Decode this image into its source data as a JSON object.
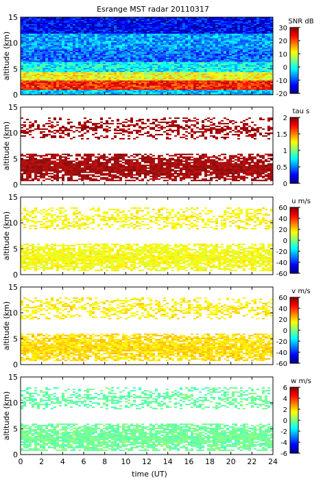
{
  "chart_data": {
    "type": "heatmap",
    "title": "Esrange MST radar 20110317",
    "xlabel": "time (UT)",
    "xlim": [
      0,
      24
    ],
    "xticks": [
      "0",
      "2",
      "4",
      "6",
      "8",
      "10",
      "12",
      "14",
      "16",
      "18",
      "20",
      "22",
      "24"
    ],
    "panels": [
      {
        "id": "snr",
        "ylabel": "altitude (km)",
        "ylim": [
          0,
          15
        ],
        "yticks": [
          "0",
          "5",
          "10",
          "15"
        ],
        "colorbar_label": "SNR dB",
        "colorbar_range": [
          -20,
          30
        ],
        "colorbar_ticks": [
          "30",
          "20",
          "10",
          "0",
          "-10",
          "-20"
        ],
        "colormap": "jet",
        "layers": [
          {
            "alt_min": 0.0,
            "alt_max": 1.0,
            "level": 0.32
          },
          {
            "alt_min": 1.0,
            "alt_max": 2.8,
            "level": 0.85
          },
          {
            "alt_min": 2.8,
            "alt_max": 4.6,
            "level": 0.62
          },
          {
            "alt_min": 4.6,
            "alt_max": 6.5,
            "level": 0.38
          },
          {
            "alt_min": 6.5,
            "alt_max": 9.0,
            "level": 0.22
          },
          {
            "alt_min": 9.0,
            "alt_max": 12.0,
            "level": 0.28
          },
          {
            "alt_min": 12.0,
            "alt_max": 15.0,
            "level": 0.12
          }
        ]
      },
      {
        "id": "tau",
        "ylabel": "altitude (km)",
        "ylim": [
          0,
          15
        ],
        "yticks": [
          "0",
          "5",
          "10",
          "15"
        ],
        "colorbar_label": "tau s",
        "colorbar_range": [
          0,
          2
        ],
        "colorbar_ticks": [
          "2",
          "1.5",
          "1",
          "0.5",
          "0"
        ],
        "colormap": "jet",
        "layers": [
          {
            "alt_min": 0.8,
            "alt_max": 6.0,
            "level": 0.97
          },
          {
            "alt_min": 9.0,
            "alt_max": 13.0,
            "level": 0.97
          }
        ]
      },
      {
        "id": "u",
        "ylabel": "altitude (km)",
        "ylim": [
          0,
          15
        ],
        "yticks": [
          "0",
          "5",
          "10",
          "15"
        ],
        "colorbar_label": "u m/s",
        "colorbar_range": [
          -60,
          60
        ],
        "colorbar_ticks": [
          "60",
          "40",
          "20",
          "0",
          "-20",
          "-40",
          "-60"
        ],
        "colormap": "jet",
        "layers": [
          {
            "alt_min": 0.8,
            "alt_max": 6.0,
            "level": 0.62
          },
          {
            "alt_min": 9.0,
            "alt_max": 13.0,
            "level": 0.63
          }
        ]
      },
      {
        "id": "v",
        "ylabel": "altitude (km)",
        "ylim": [
          0,
          15
        ],
        "yticks": [
          "0",
          "5",
          "10",
          "15"
        ],
        "colorbar_label": "v m/s",
        "colorbar_range": [
          -60,
          60
        ],
        "colorbar_ticks": [
          "60",
          "40",
          "20",
          "0",
          "-20",
          "-40",
          "-60"
        ],
        "colormap": "jet",
        "layers": [
          {
            "alt_min": 0.8,
            "alt_max": 6.0,
            "level": 0.66
          },
          {
            "alt_min": 9.0,
            "alt_max": 13.0,
            "level": 0.64
          }
        ]
      },
      {
        "id": "w",
        "ylabel": "altitude (km)",
        "ylim": [
          0,
          15
        ],
        "yticks": [
          "0",
          "5",
          "10",
          "15"
        ],
        "colorbar_label": "w m/s",
        "colorbar_range": [
          -6,
          6
        ],
        "colorbar_ticks": [
          "6",
          "4",
          "2",
          "0",
          "-2",
          "-4",
          "-6"
        ],
        "colormap": "jet",
        "layers": [
          {
            "alt_min": 0.8,
            "alt_max": 6.0,
            "level": 0.48
          },
          {
            "alt_min": 9.0,
            "alt_max": 13.0,
            "level": 0.47
          }
        ]
      }
    ]
  }
}
